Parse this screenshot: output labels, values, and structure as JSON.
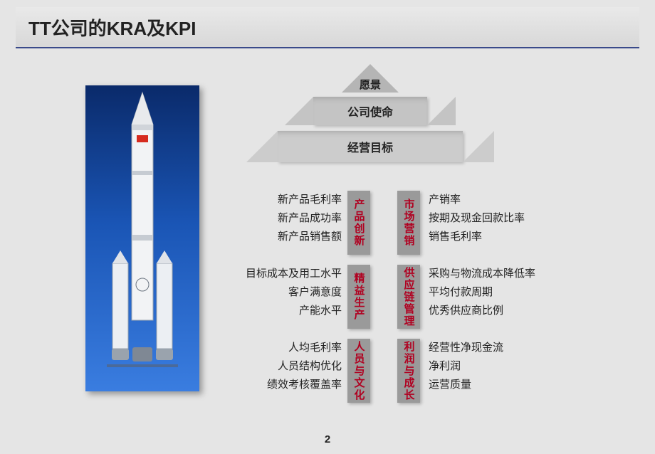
{
  "title": "TT公司的KRA及KPI",
  "pageNumber": "2",
  "pyramid": {
    "level1": "愿景",
    "level2": "公司使命",
    "level3": "经营目标"
  },
  "colors": {
    "headerUnderline": "#3a4a8a",
    "kraBox": "#9a9a9a",
    "kraText": "#b00020",
    "rocketBgTop": "#0a2a6a",
    "rocketBgBottom": "#3a7de0"
  },
  "kra": [
    {
      "left": {
        "name": "产品创新",
        "kpis": [
          "新产品毛利率",
          "新产品成功率",
          "新产品销售额"
        ]
      },
      "right": {
        "name": "市场营销",
        "kpis": [
          "产销率",
          "按期及现金回款比率",
          "销售毛利率"
        ]
      }
    },
    {
      "left": {
        "name": "精益生产",
        "kpis": [
          "目标成本及用工水平",
          "客户满意度",
          "产能水平"
        ]
      },
      "right": {
        "name": "供应链管理",
        "kpis": [
          "采购与物流成本降低率",
          "平均付款周期",
          "优秀供应商比例"
        ]
      }
    },
    {
      "left": {
        "name": "人员与文化",
        "kpis": [
          "人均毛利率",
          "人员结构优化",
          "绩效考核覆盖率"
        ]
      },
      "right": {
        "name": "利润与成长",
        "kpis": [
          "经营性净现金流",
          "净利润",
          "运营质量"
        ]
      }
    }
  ]
}
